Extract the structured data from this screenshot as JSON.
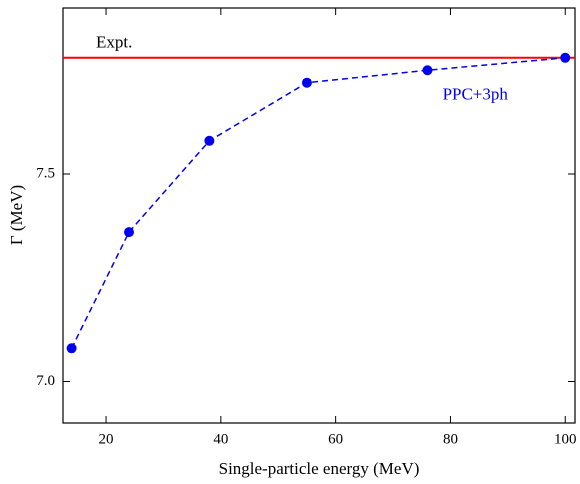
{
  "chart_data": {
    "type": "line",
    "x_label": "Single-particle energy (MeV)",
    "y_label": "Γ (MeV)",
    "x": [
      14,
      24,
      38,
      55,
      76,
      100
    ],
    "series": [
      {
        "name": "PPC+3ph",
        "color": "#0000ee",
        "values": [
          7.08,
          7.36,
          7.58,
          7.72,
          7.75,
          7.78
        ]
      }
    ],
    "reference_lines": [
      {
        "name": "Expt.",
        "value": 7.78,
        "color": "#ff0000"
      }
    ],
    "xlim": [
      12.5,
      101.7
    ],
    "ylim": [
      6.9,
      7.9
    ],
    "xticks": [
      20,
      40,
      60,
      80,
      100
    ],
    "yticks": [
      {
        "value": 7.0,
        "label": "7.0"
      },
      7.5
    ]
  }
}
